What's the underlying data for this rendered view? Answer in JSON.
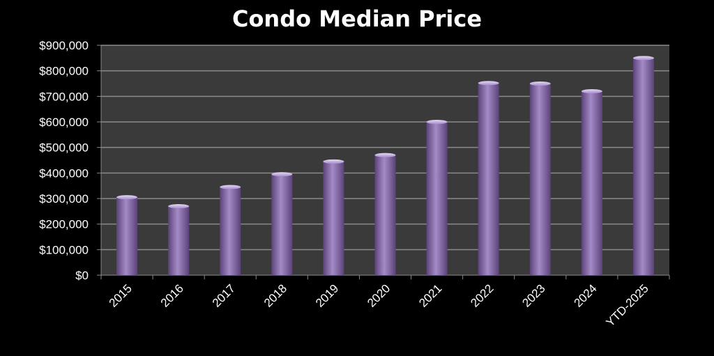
{
  "chart_data": {
    "type": "bar",
    "title": "Condo Median Price",
    "xlabel": "",
    "ylabel": "",
    "categories": [
      "2015",
      "2016",
      "2017",
      "2018",
      "2019",
      "2020",
      "2021",
      "2022",
      "2023",
      "2024",
      "YTD-2025"
    ],
    "values": [
      305000,
      270000,
      345000,
      395000,
      445000,
      470000,
      600000,
      752000,
      750000,
      720000,
      850000
    ],
    "ylim": [
      0,
      900000
    ],
    "yticks": [
      0,
      100000,
      200000,
      300000,
      400000,
      500000,
      600000,
      700000,
      800000,
      900000
    ],
    "ytick_labels": [
      "$0",
      "$100,000",
      "$200,000",
      "$300,000",
      "$400,000",
      "$500,000",
      "$600,000",
      "$700,000",
      "$800,000",
      "$900,000"
    ],
    "grid": true,
    "legend": "none",
    "colors": {
      "background": "#000000",
      "plot_area": "#3a3a3a",
      "bar": "#8064a2",
      "bar_light": "#a48bc7",
      "bar_dark": "#5b4379",
      "grid": "#8a8a8a",
      "text": "#ffffff"
    }
  }
}
